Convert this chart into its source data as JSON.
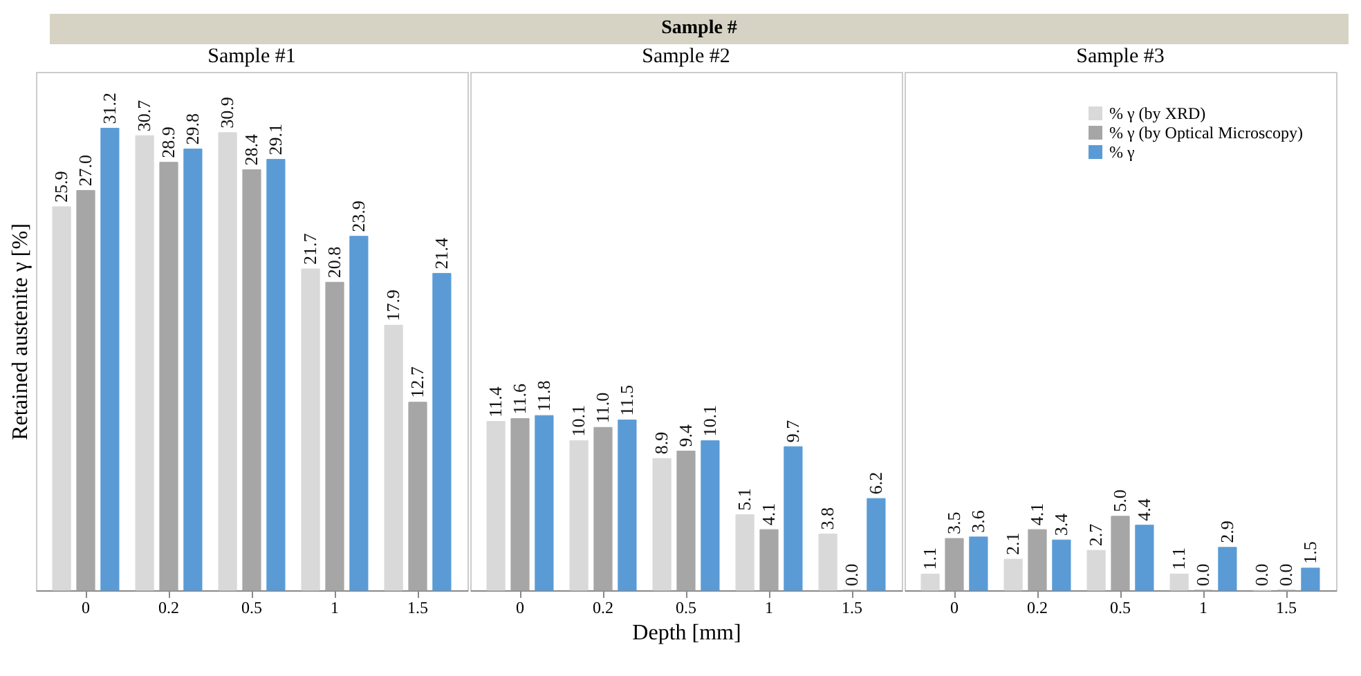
{
  "chart_data": [
    {
      "type": "bar",
      "title": "Sample #1",
      "ylabel": "Retained austenite γ [%]",
      "categories": [
        "0",
        "0.2",
        "0.5",
        "1",
        "1.5"
      ],
      "tick_labels": "x",
      "series": [
        {
          "color": "#d9d9d9",
          "values": [
            25.9,
            30.7,
            30.9,
            21.7,
            17.9
          ],
          "value_labels": [
            "25.9",
            "30.7",
            "30.9",
            "21.7",
            "17.9"
          ]
        },
        {
          "color": "#a6a6a6",
          "values": [
            27.0,
            28.9,
            28.4,
            20.8,
            12.7
          ],
          "value_labels": [
            "27.0",
            "28.9",
            "28.4",
            "20.8",
            "12.7"
          ]
        },
        {
          "color": "#5b9bd5",
          "values": [
            31.2,
            29.8,
            29.1,
            23.9,
            21.4
          ],
          "value_labels": [
            "31.2",
            "29.8",
            "29.1",
            "23.9",
            "21.4"
          ]
        }
      ]
    },
    {
      "type": "bar",
      "title": "Sample #2",
      "xlabel": "Depth [mm]",
      "annotations": [
        "Sample #"
      ],
      "categories": [
        "0",
        "0.2",
        "0.5",
        "1",
        "1.5"
      ],
      "tick_labels": "x",
      "series": [
        {
          "color": "#d9d9d9",
          "values": [
            11.4,
            10.1,
            8.9,
            5.1,
            3.8
          ],
          "value_labels": [
            "11.4",
            "10.1",
            "8.9",
            "5.1",
            "3.8"
          ]
        },
        {
          "color": "#a6a6a6",
          "values": [
            11.6,
            11.0,
            9.4,
            4.1,
            0.0
          ],
          "value_labels": [
            "11.6",
            "11.0",
            "9.4",
            "4.1",
            "0.0"
          ]
        },
        {
          "color": "#5b9bd5",
          "values": [
            11.8,
            11.5,
            10.1,
            9.7,
            6.2
          ],
          "value_labels": [
            "11.8",
            "11.5",
            "10.1",
            "9.7",
            "6.2"
          ]
        }
      ]
    },
    {
      "type": "bar",
      "title": "Sample #3",
      "categories": [
        "0",
        "0.2",
        "0.5",
        "1",
        "1.5"
      ],
      "tick_labels": "x",
      "legend": "top right",
      "series": [
        {
          "name": "% γ (by XRD)",
          "color": "#d9d9d9",
          "values": [
            1.1,
            2.1,
            2.7,
            1.1,
            0.0
          ],
          "value_labels": [
            "1.1",
            "2.1",
            "2.7",
            "1.1",
            "0.0"
          ]
        },
        {
          "name": "% γ (by Optical Microscopy)",
          "color": "#a6a6a6",
          "values": [
            3.5,
            4.1,
            5.0,
            0.0,
            0.0
          ],
          "value_labels": [
            "3.5",
            "4.1",
            "5.0",
            "0.0",
            "0.0"
          ]
        },
        {
          "name": "% γ",
          "color": "#5b9bd5",
          "values": [
            3.6,
            3.4,
            4.4,
            2.9,
            1.5
          ],
          "value_labels": [
            "3.6",
            "3.4",
            "4.4",
            "2.9",
            "1.5"
          ]
        }
      ]
    }
  ]
}
